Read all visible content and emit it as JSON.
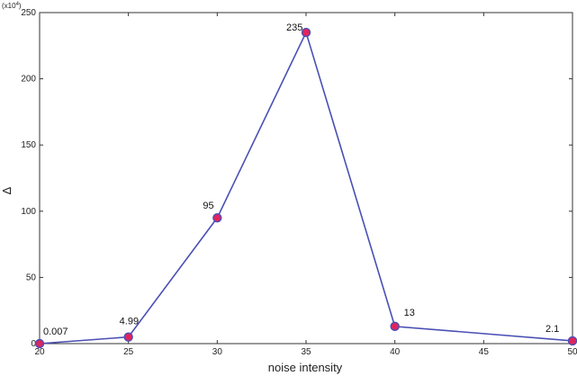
{
  "chart_data": {
    "type": "line",
    "xlabel": "noise intensity",
    "ylabel": "Δ",
    "y_multiplier": "(x10",
    "y_multiplier_exp": "4",
    "y_multiplier_close": ")",
    "xlim": [
      20,
      50
    ],
    "ylim": [
      0,
      250
    ],
    "xticks": [
      20,
      25,
      30,
      35,
      40,
      45,
      50
    ],
    "yticks": [
      0,
      50,
      100,
      150,
      200,
      250
    ],
    "grid": false,
    "series": [
      {
        "x": [
          20,
          25,
          30,
          35,
          40,
          50
        ],
        "y": [
          0.007,
          4.99,
          95,
          235,
          13,
          2.1
        ],
        "labels": [
          "0.007",
          "4.99",
          "95",
          "235",
          "13",
          "2.1"
        ]
      }
    ],
    "colors": {
      "line": "#4a4fb5",
      "marker_fill": "#e0245e",
      "marker_stroke": "#4a4fb5",
      "axis": "#333333"
    }
  }
}
